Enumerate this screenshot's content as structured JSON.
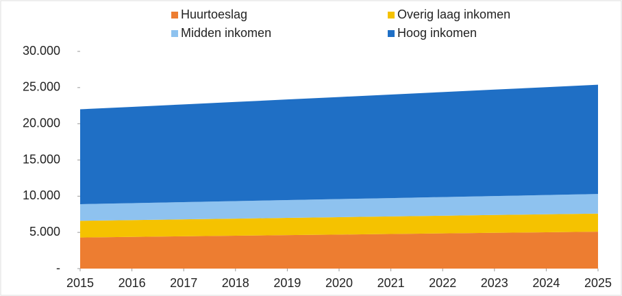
{
  "chart_data": {
    "type": "stacked-area",
    "x": [
      2015,
      2016,
      2017,
      2018,
      2019,
      2020,
      2021,
      2022,
      2023,
      2024,
      2025
    ],
    "xlim": [
      2015,
      2025
    ],
    "xticks": [
      2015,
      2016,
      2017,
      2018,
      2019,
      2020,
      2021,
      2022,
      2023,
      2024,
      2025
    ],
    "ylim": [
      0,
      30000
    ],
    "yticks": [
      {
        "value": 0,
        "label": "-"
      },
      {
        "value": 5000,
        "label": "5.000"
      },
      {
        "value": 10000,
        "label": "10.000"
      },
      {
        "value": 15000,
        "label": "15.000"
      },
      {
        "value": 20000,
        "label": "20.000"
      },
      {
        "value": 25000,
        "label": "25.000"
      },
      {
        "value": 30000,
        "label": "30.000"
      }
    ],
    "series": [
      {
        "name": "Huurtoeslag",
        "color": "#ed7d31",
        "values": [
          4300,
          4380,
          4460,
          4540,
          4620,
          4700,
          4780,
          4860,
          4940,
          5020,
          5100
        ]
      },
      {
        "name": "Overig laag inkomen",
        "color": "#f5c200",
        "values": [
          2300,
          2320,
          2340,
          2360,
          2380,
          2400,
          2420,
          2440,
          2460,
          2480,
          2500
        ]
      },
      {
        "name": "Midden inkomen",
        "color": "#8ec2ef",
        "values": [
          2300,
          2340,
          2380,
          2420,
          2460,
          2500,
          2540,
          2580,
          2620,
          2660,
          2700
        ]
      },
      {
        "name": "Hoog inkomen",
        "color": "#1f6fc5",
        "values": [
          13100,
          13300,
          13500,
          13700,
          13900,
          14100,
          14300,
          14500,
          14700,
          14900,
          15100
        ]
      }
    ]
  }
}
